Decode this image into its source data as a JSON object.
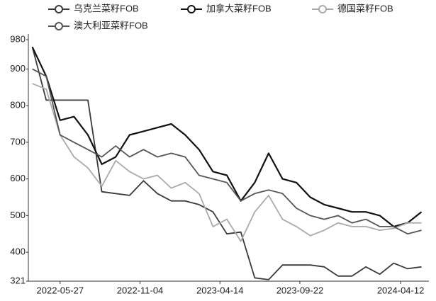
{
  "chart_data": {
    "type": "line",
    "x": [
      "2022-04-01",
      "2022-04-29",
      "2022-05-27",
      "2022-06-24",
      "2022-07-22",
      "2022-08-19",
      "2022-09-16",
      "2022-10-14",
      "2022-11-11",
      "2022-12-09",
      "2023-01-06",
      "2023-02-03",
      "2023-03-03",
      "2023-03-31",
      "2023-04-28",
      "2023-05-26",
      "2023-06-23",
      "2023-07-21",
      "2023-08-18",
      "2023-09-15",
      "2023-10-13",
      "2023-11-10",
      "2023-12-08",
      "2024-01-05",
      "2024-02-02",
      "2024-03-01",
      "2024-03-29",
      "2024-04-26",
      "2024-05-24"
    ],
    "series": [
      {
        "name": "乌克兰菜籽FOB",
        "color": "#3a3a3a",
        "values": [
          960,
          815,
          815,
          815,
          815,
          565,
          560,
          555,
          595,
          560,
          540,
          540,
          530,
          510,
          450,
          455,
          330,
          325,
          365,
          365,
          365,
          360,
          335,
          335,
          360,
          340,
          370,
          355,
          360
        ]
      },
      {
        "name": "加拿大菜籽FOB",
        "color": "#111111",
        "values": [
          960,
          880,
          760,
          770,
          720,
          640,
          660,
          720,
          730,
          740,
          750,
          720,
          680,
          620,
          610,
          540,
          590,
          670,
          600,
          590,
          550,
          530,
          520,
          510,
          510,
          500,
          470,
          480,
          510
        ]
      },
      {
        "name": "德国菜籽FOB",
        "color": "#aaaaaa",
        "values": [
          860,
          845,
          720,
          660,
          630,
          580,
          650,
          620,
          600,
          610,
          575,
          590,
          560,
          470,
          490,
          430,
          510,
          555,
          490,
          470,
          445,
          460,
          480,
          470,
          470,
          460,
          465,
          480,
          480
        ]
      },
      {
        "name": "澳大利亚菜籽FOB",
        "color": "#555555",
        "values": [
          900,
          880,
          720,
          700,
          680,
          660,
          690,
          660,
          680,
          660,
          670,
          660,
          610,
          600,
          590,
          540,
          560,
          570,
          560,
          520,
          500,
          490,
          500,
          480,
          490,
          470,
          470,
          450,
          460
        ]
      }
    ],
    "xlim": [
      "2022-03-24",
      "2024-06-08"
    ],
    "xticks": [
      "2022-05-27",
      "2022-11-04",
      "2023-04-14",
      "2023-09-22",
      "2024-04-12"
    ],
    "ylim": [
      321,
      980
    ],
    "yticks": [
      321,
      400,
      500,
      600,
      700,
      800,
      900,
      980
    ],
    "grid": false
  }
}
